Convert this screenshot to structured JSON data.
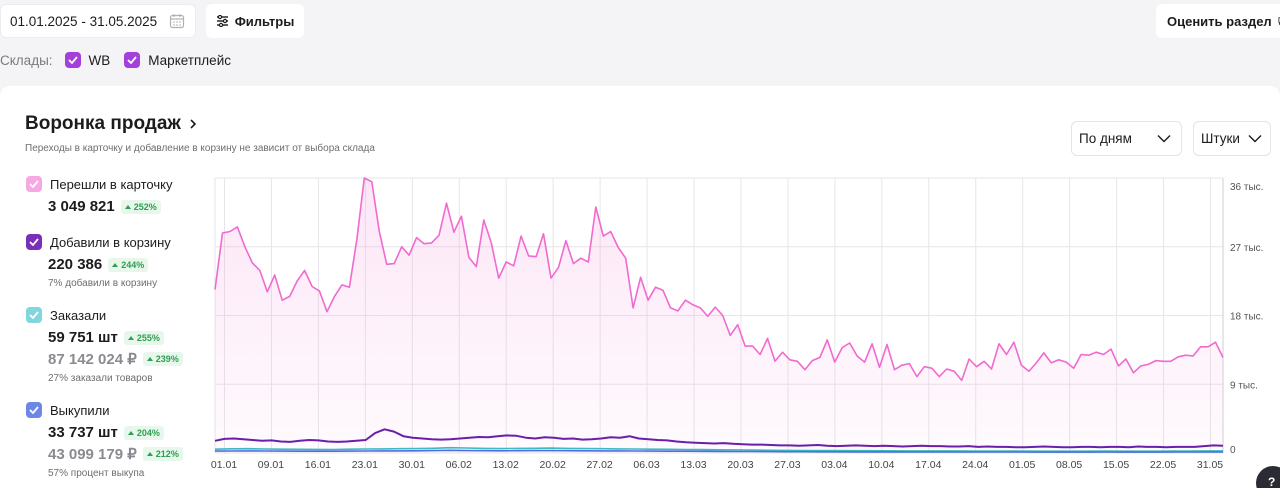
{
  "toolbar": {
    "date_range": "01.01.2025 - 31.05.2025",
    "filters_label": "Фильтры",
    "rate_label": "Оценить раздел"
  },
  "stores": {
    "label": "Склады:",
    "items": [
      {
        "label": "WB",
        "checked": true
      },
      {
        "label": "Маркетплейс",
        "checked": true
      }
    ]
  },
  "funnel": {
    "title": "Воронка продаж",
    "subtitle": "Переходы в карточку и добавление в корзину не зависит от выбора склада",
    "period_select": "По дням",
    "unit_select": "Штуки",
    "metrics": [
      {
        "label": "Перешли в карточку",
        "color": "#f48fd8",
        "value": "3 049 821",
        "change": "252%"
      },
      {
        "label": "Добавили в корзину",
        "color": "#7a2fb8",
        "value": "220 386",
        "change": "244%",
        "note": "7% добавили в корзину"
      },
      {
        "label": "Заказали",
        "color": "#7fd6dd",
        "value": "59 751 шт",
        "change": "255%",
        "value2": "87 142 024 ₽",
        "change2": "239%",
        "note": "27% заказали товаров"
      },
      {
        "label": "Выкупили",
        "color": "#6b87e8",
        "value": "33 737 шт",
        "change": "204%",
        "value2": "43 099 179 ₽",
        "change2": "212%",
        "note": "57% процент выкупа"
      }
    ]
  },
  "chart_data": {
    "type": "line",
    "x_labels": [
      "01.01",
      "09.01",
      "16.01",
      "23.01",
      "30.01",
      "06.02",
      "13.02",
      "20.02",
      "27.02",
      "06.03",
      "13.03",
      "20.03",
      "27.03",
      "03.04",
      "10.04",
      "17.04",
      "24.04",
      "01.05",
      "08.05",
      "15.05",
      "22.05",
      "31.05"
    ],
    "y_ticks": [
      "0",
      "9 тыс.",
      "18 тыс.",
      "27 тыс.",
      "36 тыс."
    ],
    "ylim": [
      0,
      36000
    ],
    "grid": true,
    "series": [
      {
        "name": "Перешли в карточку",
        "color": "#f06ad0",
        "values": [
          21400,
          28800,
          29000,
          29600,
          27000,
          24900,
          23900,
          21100,
          23300,
          20000,
          20500,
          22500,
          23900,
          21800,
          21200,
          18500,
          20500,
          22000,
          21700,
          28000,
          36000,
          35500,
          29000,
          24700,
          24800,
          27000,
          25900,
          28200,
          27400,
          27500,
          28500,
          32700,
          28900,
          31000,
          25600,
          24400,
          30500,
          27500,
          22900,
          25000,
          24500,
          28400,
          25800,
          25700,
          28700,
          22900,
          24300,
          27800,
          24800,
          25500,
          25000,
          32200,
          28400,
          29000,
          26900,
          25500,
          19000,
          23000,
          20000,
          21700,
          21300,
          19000,
          18600,
          20000,
          19400,
          19000,
          17900,
          19100,
          18000,
          15400,
          16800,
          14000,
          14000,
          12900,
          15000,
          12000,
          13200,
          12200,
          12000,
          10900,
          12100,
          12500,
          14800,
          11900,
          13800,
          14400,
          12700,
          11900,
          14300,
          11200,
          14200,
          10900,
          11500,
          11700,
          10000,
          11300,
          11100,
          10000,
          11000,
          10700,
          9500,
          12300,
          11300,
          12000,
          11000,
          14300,
          12900,
          14500,
          11500,
          10700,
          11800,
          13100,
          11800,
          12200,
          11900,
          11100,
          12900,
          12800,
          13200,
          12900,
          13600,
          11400,
          12300,
          10500,
          11400,
          11600,
          12100,
          12000,
          12000,
          12600,
          12800,
          12700,
          13900,
          13900,
          14500,
          12500
        ]
      },
      {
        "name": "Добавили в корзину",
        "color": "#6a1fa8",
        "values": [
          1600,
          1850,
          1900,
          1800,
          1700,
          1600,
          1650,
          1500,
          1450,
          1600,
          1700,
          1650,
          1500,
          1450,
          1500,
          1600,
          1700,
          2600,
          3100,
          2800,
          2200,
          2000,
          1900,
          1800,
          1750,
          1800,
          1900,
          2000,
          2100,
          2050,
          2200,
          2300,
          2250,
          2000,
          1900,
          2050,
          2000,
          1850,
          1900,
          1750,
          1800,
          1900,
          2050,
          2000,
          2200,
          1900,
          1800,
          1700,
          1650,
          1500,
          1400,
          1350,
          1300,
          1250,
          1300,
          1200,
          1150,
          1100,
          1100,
          1050,
          1000,
          1000,
          950,
          1000,
          1050,
          950,
          900,
          950,
          1000,
          950,
          900,
          950,
          900,
          850,
          900,
          950,
          900,
          900,
          850,
          850,
          900,
          800,
          850,
          800,
          800,
          750,
          750,
          800,
          850,
          800,
          750,
          750,
          800,
          800,
          750,
          800,
          800,
          750,
          850,
          800,
          800,
          750,
          800,
          800,
          800,
          900,
          1000,
          950
        ]
      },
      {
        "name": "Заказали",
        "color": "#3fb8c4",
        "values": [
          500,
          550,
          560,
          520,
          500,
          480,
          470,
          460,
          500,
          520,
          540,
          560,
          580,
          620,
          700,
          650,
          600,
          580,
          600,
          620,
          640,
          600,
          580,
          560,
          540,
          520,
          500,
          480,
          460,
          440,
          420,
          400,
          380,
          360,
          340,
          330,
          320,
          310,
          300,
          300,
          290,
          280,
          280,
          270,
          270,
          260,
          260,
          250,
          250,
          240,
          240,
          230,
          240,
          250,
          240,
          230,
          240,
          250,
          260,
          270,
          280
        ]
      },
      {
        "name": "Выкупили",
        "color": "#4a6fe0",
        "values": [
          250,
          260,
          270,
          260,
          250,
          240,
          240,
          230,
          250,
          260,
          270,
          280,
          290,
          310,
          350,
          320,
          300,
          290,
          300,
          310,
          320,
          300,
          290,
          280,
          270,
          260,
          250,
          240,
          230,
          220,
          210,
          200,
          190,
          180,
          170,
          165,
          160,
          155,
          150,
          150,
          145,
          140,
          140,
          135,
          135,
          130,
          130,
          125,
          125,
          120,
          120,
          115,
          120,
          125,
          120,
          115,
          120,
          125,
          130,
          135,
          140
        ]
      }
    ]
  }
}
